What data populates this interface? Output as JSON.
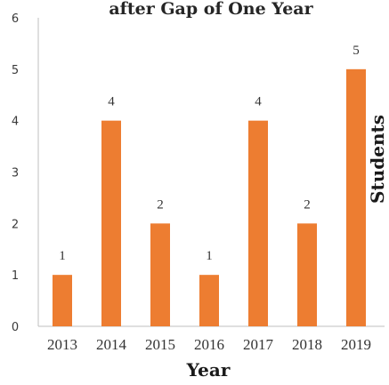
{
  "chart_data": {
    "type": "bar",
    "title": "after Gap of One Year",
    "xlabel": "Year",
    "ylabel": "Students",
    "categories": [
      "2013",
      "2014",
      "2015",
      "2016",
      "2017",
      "2018",
      "2019"
    ],
    "values": [
      1,
      4,
      2,
      1,
      4,
      2,
      5
    ],
    "data_labels": [
      "1",
      "4",
      "2",
      "1",
      "4",
      "2",
      "5"
    ],
    "yticks": [
      "0",
      "1",
      "2",
      "3",
      "4",
      "5",
      "6"
    ],
    "ylim": [
      0,
      6
    ],
    "grid": false,
    "legend": "none",
    "bar_color": "#ed7d31"
  }
}
